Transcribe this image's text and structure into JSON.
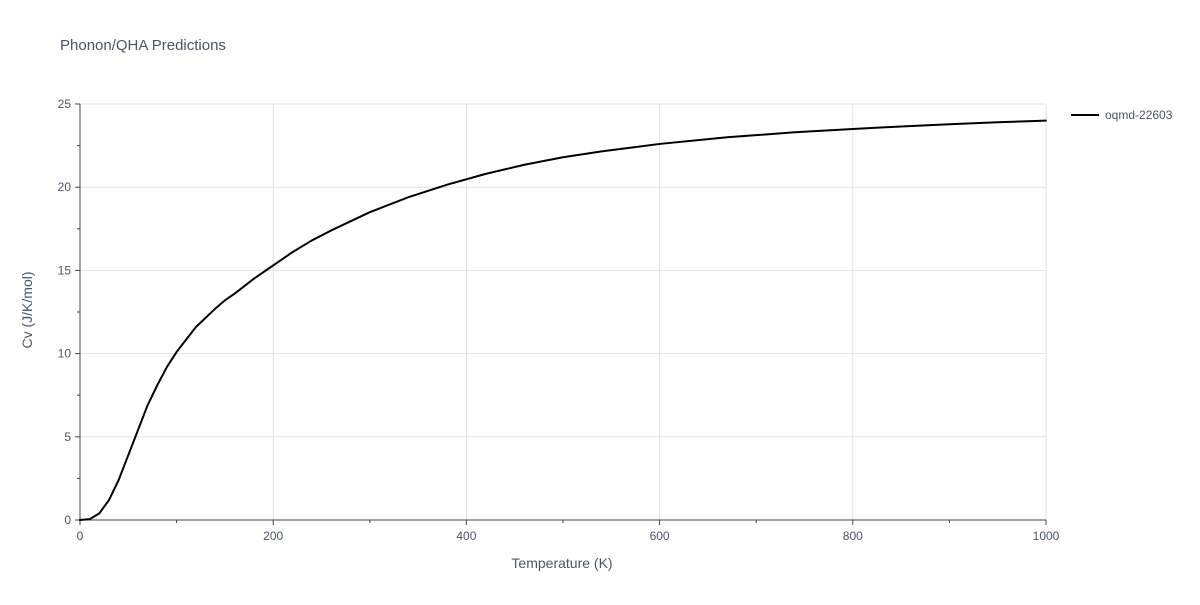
{
  "chart_data": {
    "type": "line",
    "title": "Phonon/QHA Predictions",
    "xlabel": "Temperature (K)",
    "ylabel": "Cv (J/K/mol)",
    "xlim": [
      0,
      1000
    ],
    "ylim": [
      0,
      25
    ],
    "x_ticks": [
      0,
      200,
      400,
      600,
      800,
      1000
    ],
    "y_ticks": [
      0,
      5,
      10,
      15,
      20,
      25
    ],
    "grid": true,
    "legend_position": "top-right",
    "series": [
      {
        "name": "oqmd-22603",
        "color": "#000000",
        "x": [
          0,
          10,
          20,
          30,
          40,
          50,
          60,
          70,
          80,
          90,
          100,
          120,
          140,
          150,
          160,
          180,
          200,
          220,
          240,
          260,
          280,
          300,
          340,
          380,
          420,
          460,
          500,
          540,
          600,
          670,
          740,
          800,
          850,
          900,
          950,
          1000
        ],
        "y": [
          0,
          0.05,
          0.4,
          1.2,
          2.4,
          3.9,
          5.4,
          6.9,
          8.1,
          9.2,
          10.1,
          11.6,
          12.7,
          13.2,
          13.6,
          14.5,
          15.3,
          16.1,
          16.8,
          17.4,
          17.95,
          18.5,
          19.4,
          20.15,
          20.8,
          21.35,
          21.8,
          22.15,
          22.6,
          23.0,
          23.3,
          23.5,
          23.65,
          23.78,
          23.9,
          24.0
        ]
      }
    ]
  }
}
